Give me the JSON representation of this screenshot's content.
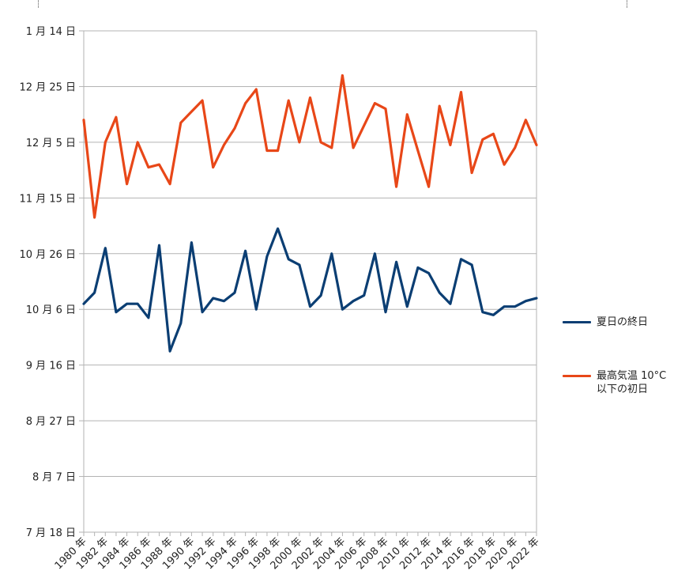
{
  "chart_data": {
    "type": "line",
    "title": "",
    "xlabel": "",
    "ylabel": "",
    "x": [
      1980,
      1981,
      1982,
      1983,
      1984,
      1985,
      1986,
      1987,
      1988,
      1989,
      1990,
      1991,
      1992,
      1993,
      1994,
      1995,
      1996,
      1997,
      1998,
      1999,
      2000,
      2001,
      2002,
      2003,
      2004,
      2005,
      2006,
      2007,
      2008,
      2009,
      2010,
      2011,
      2012,
      2013,
      2014,
      2015,
      2016,
      2017,
      2018,
      2019,
      2020,
      2021,
      2022
    ],
    "x_tick_labels": [
      "1980 年",
      "1982 年",
      "1984 年",
      "1986 年",
      "1988 年",
      "1990 年",
      "1992 年",
      "1994 年",
      "1996 年",
      "1998 年",
      "2000 年",
      "2002 年",
      "2004 年",
      "2006 年",
      "2008 年",
      "2010 年",
      "2012 年",
      "2014 年",
      "2016 年",
      "2018 年",
      "2020 年",
      "2022 年"
    ],
    "y_tick_labels": [
      "1 月 14 日",
      "12 月 25 日",
      "12 月 5 日",
      "11 月 15 日",
      "10 月 26 日",
      "10 月 6 日",
      "9 月 16 日",
      "8 月 27 日",
      "8 月 7 日",
      "7 月 18 日"
    ],
    "y_tick_dates": [
      "07-18",
      "08-07",
      "08-27",
      "09-16",
      "10-06",
      "10-26",
      "11-15",
      "12-05",
      "12-25",
      "01-14"
    ],
    "series": [
      {
        "name": "夏日の終日",
        "color": "#0b3e73",
        "values": [
          "10-08",
          "10-12",
          "10-28",
          "10-05",
          "10-08",
          "10-08",
          "10-03",
          "10-29",
          "09-21",
          "10-01",
          "10-30",
          "10-05",
          "10-10",
          "10-09",
          "10-12",
          "10-27",
          "10-06",
          "10-25",
          "11-04",
          "10-24",
          "10-22",
          "10-07",
          "10-11",
          "10-26",
          "10-06",
          "10-09",
          "10-11",
          "10-26",
          "10-05",
          "10-23",
          "10-07",
          "10-21",
          "10-19",
          "10-12",
          "10-08",
          "10-24",
          "10-22",
          "10-05",
          "10-04",
          "10-07",
          "10-07",
          "10-09",
          "10-10"
        ]
      },
      {
        "name": "最高気温 10°C\n以下の初日",
        "color": "#e84718",
        "values": [
          "12-13",
          "11-08",
          "12-05",
          "12-14",
          "11-20",
          "12-05",
          "11-26",
          "11-27",
          "11-20",
          "12-12",
          "12-16",
          "12-20",
          "11-26",
          "12-04",
          "12-10",
          "12-19",
          "12-24",
          "12-02",
          "12-02",
          "12-20",
          "12-05",
          "12-21",
          "12-05",
          "12-03",
          "12-29",
          "12-03",
          "12-11",
          "12-19",
          "12-17",
          "11-19",
          "12-15",
          "12-02",
          "11-19",
          "12-18",
          "12-04",
          "12-23",
          "11-24",
          "12-06",
          "12-08",
          "11-27",
          "12-03",
          "12-13",
          "12-04"
        ]
      }
    ],
    "grid": true,
    "legend_position": "right"
  }
}
